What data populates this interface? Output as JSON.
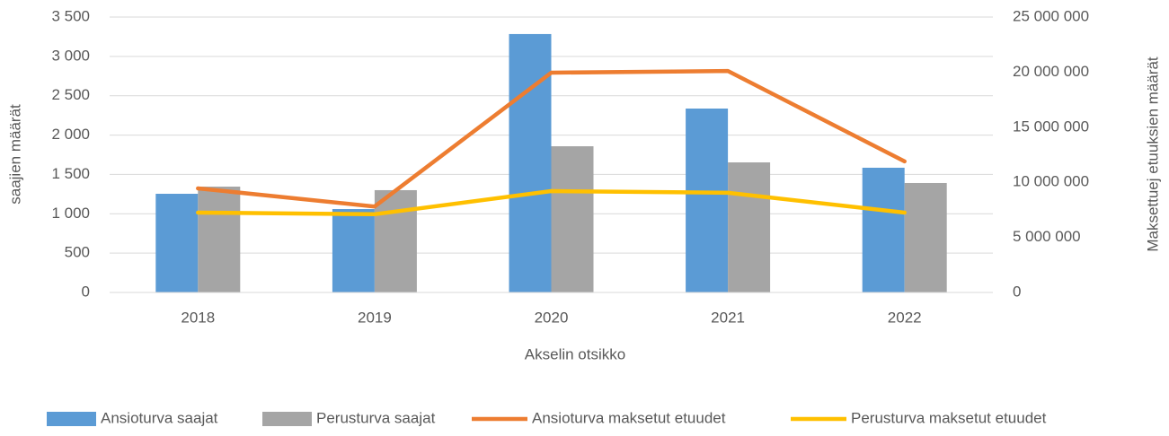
{
  "chart_data": {
    "type": "bar",
    "categories": [
      "2018",
      "2019",
      "2020",
      "2021",
      "2022"
    ],
    "x_label": "Akselin otsikko",
    "y_label": "saajien määrät",
    "y2_label": "Maksettuej etuuksien määrät",
    "series": [
      {
        "name": "Ansioturva saajat",
        "type": "bar",
        "color": "#5b9bd5",
        "values": [
          1254,
          1060,
          3284,
          2337,
          1585
        ]
      },
      {
        "name": "Perusturva saajat",
        "type": "bar",
        "color": "#a5a5a5",
        "values": [
          1345,
          1300,
          1858,
          1653,
          1391
        ]
      },
      {
        "name": "Ansioturva maksetut etuudet",
        "type": "line",
        "axis": "y2",
        "color": "#ed7d31",
        "values": [
          9450000,
          7800000,
          19950000,
          20100000,
          11900000
        ]
      },
      {
        "name": "Perusturva maksetut etuudet",
        "type": "line",
        "axis": "y2",
        "color": "#ffc000",
        "values": [
          7250000,
          7100000,
          9200000,
          9050000,
          7250000
        ]
      }
    ],
    "ylim": [
      0,
      3500
    ],
    "yticks": [
      0,
      500,
      {
        "value": 1000,
        "label": "1 000"
      },
      {
        "value": 1500,
        "label": "1 500"
      },
      {
        "value": 2000,
        "label": "2 000"
      },
      {
        "value": 2500,
        "label": "2 500"
      },
      {
        "value": 3000,
        "label": "3 000"
      },
      {
        "value": 3500,
        "label": "3 500"
      }
    ],
    "y2lim": [
      0,
      25000000
    ],
    "y2ticks": [
      0,
      {
        "value": 5000000,
        "label": "5 000 000"
      },
      {
        "value": 10000000,
        "label": "10 000 000"
      },
      {
        "value": 15000000,
        "label": "15 000 000"
      },
      {
        "value": 20000000,
        "label": "20 000 000"
      },
      {
        "value": 25000000,
        "label": "25 000 000"
      }
    ],
    "grid": true,
    "legend": "bottom"
  }
}
